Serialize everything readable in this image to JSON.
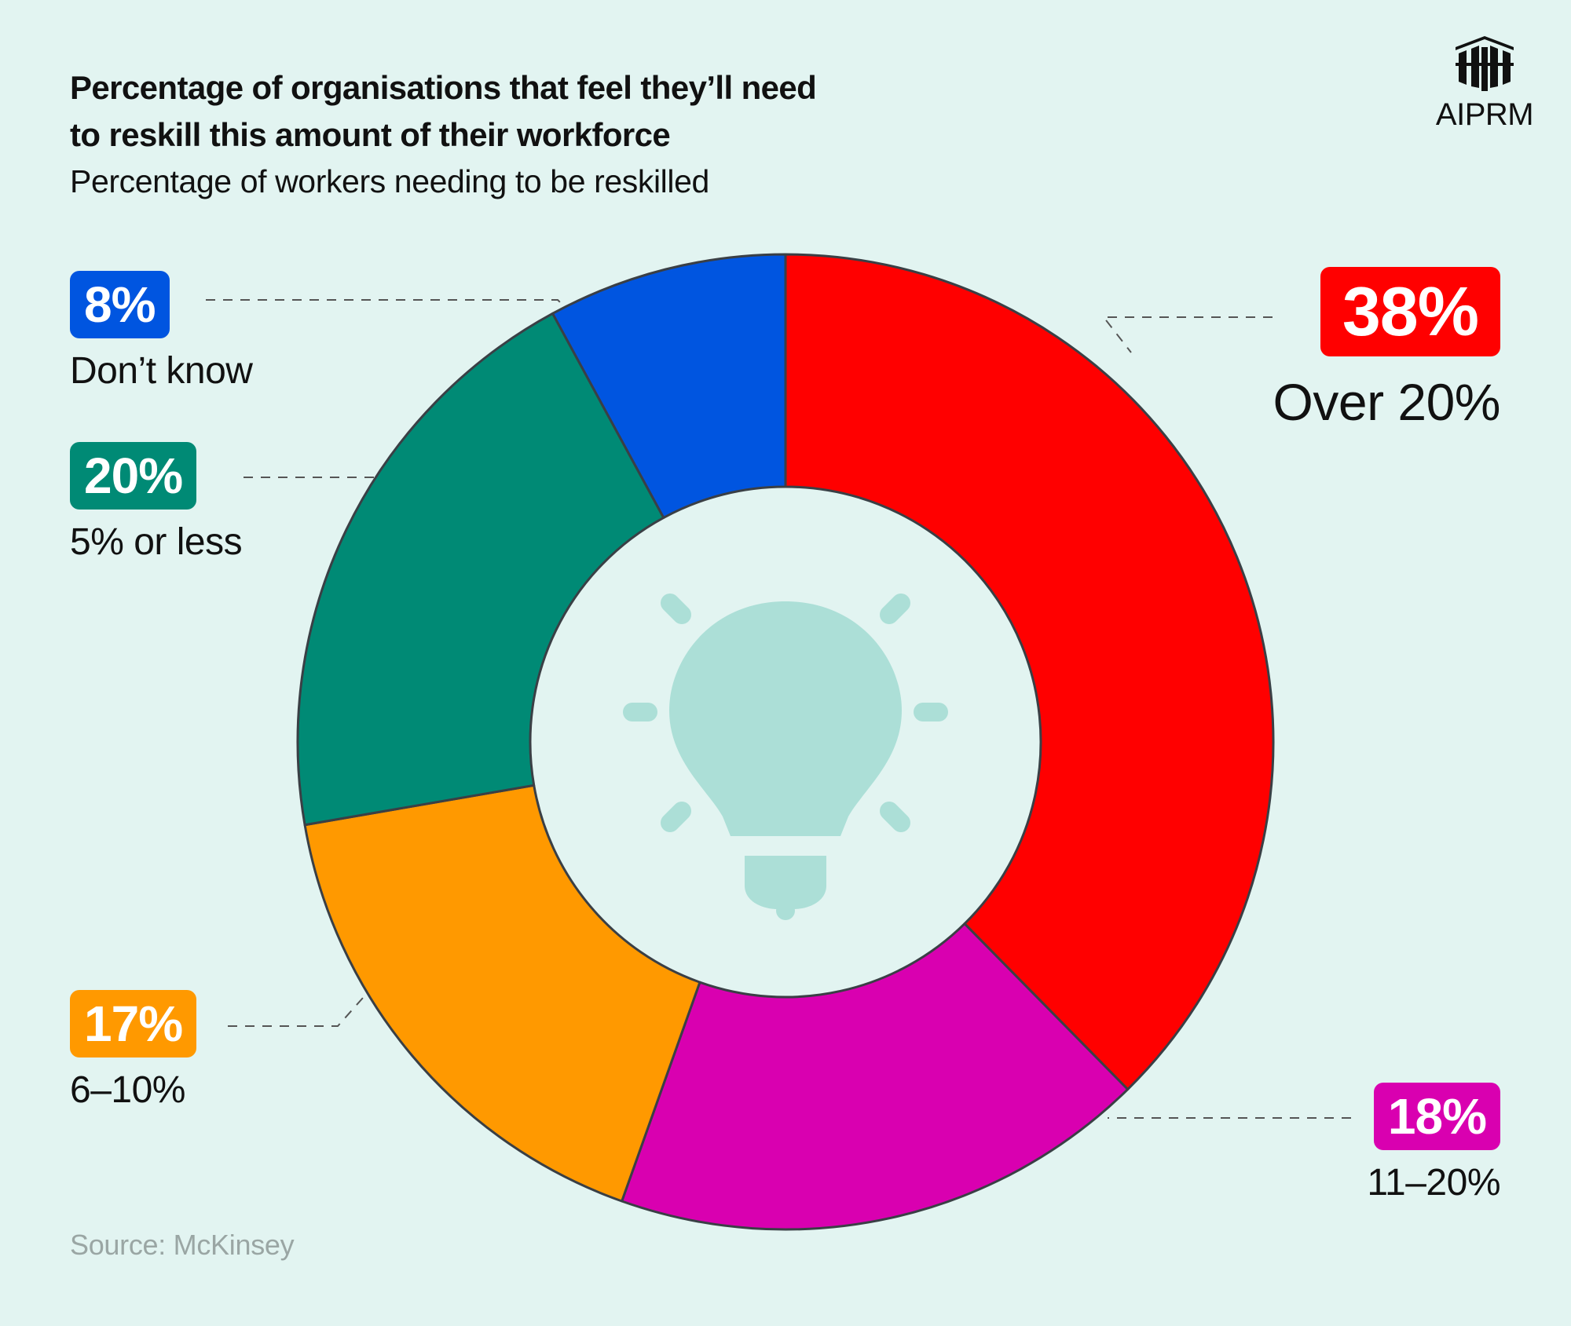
{
  "brand": {
    "name": "AIPRM"
  },
  "source": "Source: McKinsey",
  "chart_data": {
    "type": "pie",
    "donut": true,
    "title_lines": [
      "Percentage of organisations that feel they’ll need",
      "to reskill this amount of their workforce"
    ],
    "subtitle": "Percentage of workers needing to be reskilled",
    "slices": [
      {
        "label": "Over 20%",
        "value": 38,
        "display": "38%",
        "color": "#ff0000"
      },
      {
        "label": "11–20%",
        "value": 18,
        "display": "18%",
        "color": "#d900b0"
      },
      {
        "label": "6–10%",
        "value": 17,
        "display": "17%",
        "color": "#ff9900"
      },
      {
        "label": "5% or less",
        "value": 20,
        "display": "20%",
        "color": "#008a75"
      },
      {
        "label": "Don’t know",
        "value": 8,
        "display": "8%",
        "color": "#0055e0"
      }
    ],
    "center_icon": "lightbulb-icon",
    "icon_color": "#acdfd7"
  }
}
